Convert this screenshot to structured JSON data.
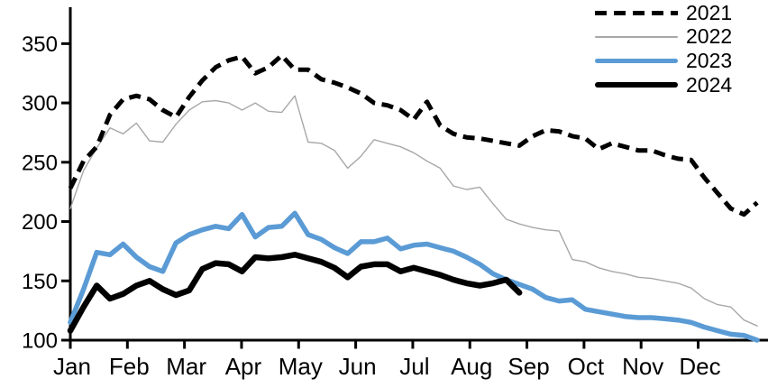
{
  "chart_data": {
    "type": "line",
    "title": "",
    "xlabel": "",
    "ylabel": "",
    "x_axis": {
      "tick_labels": [
        "Jan",
        "Feb",
        "Mar",
        "Apr",
        "May",
        "Jun",
        "Jul",
        "Aug",
        "Sep",
        "Oct",
        "Nov",
        "Dec"
      ]
    },
    "y_axis": {
      "ticks": [
        100,
        150,
        200,
        250,
        300,
        350
      ],
      "min": 100,
      "max": 350
    },
    "grid": false,
    "legend_position": "top-right",
    "x_resolution": "weekly, 53 points spanning Jan-Dec",
    "series": [
      {
        "name": "2021",
        "color": "#000000",
        "line_style": "dashed",
        "line_width": 5,
        "values": [
          228,
          251,
          263,
          290,
          303,
          306,
          303,
          294,
          288,
          305,
          319,
          330,
          336,
          339,
          325,
          330,
          340,
          328,
          328,
          320,
          317,
          313,
          308,
          300,
          298,
          294,
          286,
          301,
          281,
          274,
          271,
          270,
          268,
          266,
          264,
          272,
          277,
          276,
          272,
          270,
          261,
          266,
          263,
          260,
          260,
          256,
          253,
          252,
          237,
          224,
          211,
          206,
          216
        ]
      },
      {
        "name": "2022",
        "color": "#A8A8A8",
        "line_style": "solid",
        "line_width": 1.4,
        "values": [
          211,
          243,
          262,
          279,
          274,
          283,
          268,
          267,
          282,
          294,
          301,
          302,
          300,
          294,
          300,
          293,
          292,
          306,
          267,
          266,
          260,
          245,
          255,
          269,
          266,
          263,
          258,
          251,
          245,
          230,
          227,
          229,
          215,
          202,
          198,
          195,
          193,
          192,
          168,
          166,
          161,
          158,
          156,
          153,
          152,
          150,
          148,
          144,
          135,
          130,
          128,
          117,
          112
        ]
      },
      {
        "name": "2023",
        "color": "#5B9BD5",
        "line_style": "solid",
        "line_width": 5.5,
        "values": [
          115,
          143,
          174,
          172,
          181,
          170,
          162,
          158,
          182,
          189,
          193,
          196,
          194,
          206,
          187,
          195,
          196,
          207,
          189,
          185,
          178,
          173,
          183,
          183,
          186,
          177,
          180,
          181,
          178,
          175,
          170,
          164,
          156,
          151,
          147,
          143,
          136,
          133,
          134,
          126,
          124,
          122,
          120,
          119,
          119,
          118,
          117,
          115,
          111,
          108,
          105,
          104,
          100
        ]
      },
      {
        "name": "2024",
        "color": "#000000",
        "line_style": "solid",
        "line_width": 6.5,
        "values": [
          108,
          128,
          146,
          135,
          139,
          146,
          150,
          143,
          138,
          142,
          160,
          165,
          164,
          158,
          170,
          169,
          170,
          172,
          169,
          166,
          161,
          153,
          162,
          164,
          164,
          158,
          161,
          158,
          155,
          151,
          148,
          146,
          148,
          151,
          140
        ]
      }
    ]
  }
}
